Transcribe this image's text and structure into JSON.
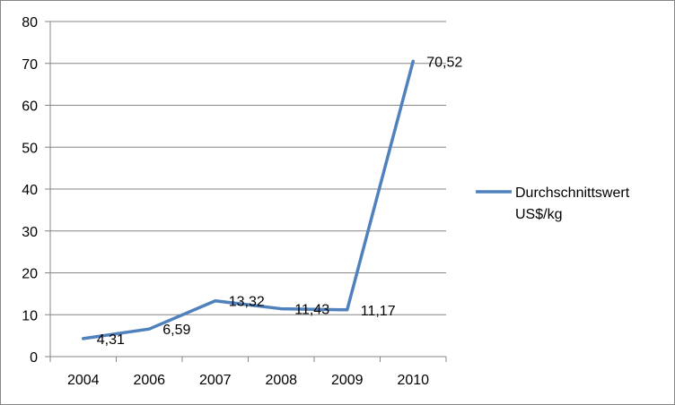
{
  "chart_data": {
    "type": "line",
    "title": "",
    "xlabel": "",
    "ylabel": "",
    "categories": [
      "2004",
      "2006",
      "2007",
      "2008",
      "2009",
      "2010"
    ],
    "series": [
      {
        "name": "Durchschnittswert US$/kg",
        "legend_lines": [
          "Durchschnittswert",
          "US$/kg"
        ],
        "values": [
          4.31,
          6.59,
          13.32,
          11.43,
          11.17,
          70.52
        ],
        "data_labels": [
          "4,31",
          "6,59",
          "13,32",
          "11,43",
          "11,17",
          "70,52"
        ],
        "color": "#4f81bd"
      }
    ],
    "ylim": [
      0,
      80
    ],
    "yticks": [
      "0",
      "10",
      "20",
      "30",
      "40",
      "50",
      "60",
      "70",
      "80"
    ],
    "grid": true,
    "legend_position": "right"
  }
}
